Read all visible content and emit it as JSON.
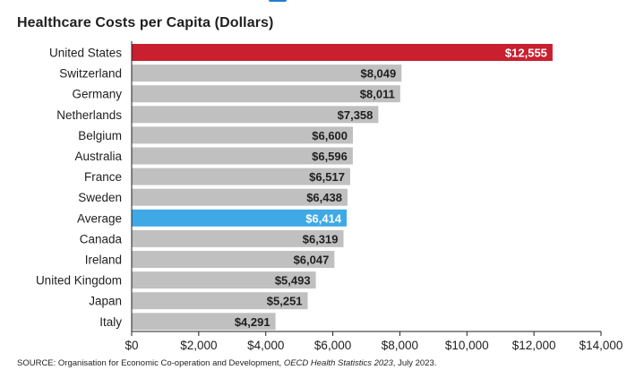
{
  "chart_data": {
    "type": "bar",
    "orientation": "horizontal",
    "title": "Healthcare Costs per Capita (Dollars)",
    "categories": [
      "United States",
      "Switzerland",
      "Germany",
      "Netherlands",
      "Belgium",
      "Australia",
      "France",
      "Sweden",
      "Average",
      "Canada",
      "Ireland",
      "United Kingdom",
      "Japan",
      "Italy"
    ],
    "values": [
      12555,
      8049,
      8011,
      7358,
      6600,
      6596,
      6517,
      6438,
      6414,
      6319,
      6047,
      5493,
      5251,
      4291
    ],
    "value_labels": [
      "$12,555",
      "$8,049",
      "$8,011",
      "$7,358",
      "$6,600",
      "$6,596",
      "$6,517",
      "$6,438",
      "$6,414",
      "$6,319",
      "$6,047",
      "$5,493",
      "$5,251",
      "$4,291"
    ],
    "xlim": [
      0,
      14000
    ],
    "x_ticks": [
      0,
      2000,
      4000,
      6000,
      8000,
      10000,
      12000,
      14000
    ],
    "x_tick_labels": [
      "$0",
      "$2,000",
      "$4,000",
      "$6,000",
      "$8,000",
      "$10,000",
      "$12,000",
      "$14,000"
    ],
    "grid": false,
    "legend": "none",
    "colors": {
      "default_bar": "#c0c0c0",
      "highlight_united_states": "#c8202f",
      "highlight_average": "#3fa9e6",
      "default_label": "#1f1f1f",
      "highlight_label": "#ffffff",
      "axis": "#1f1f1f"
    }
  },
  "source": {
    "prefix": "SOURCE: Organisation for Economic Co-operation and Development, ",
    "publication": "OECD Health Statistics 2023",
    "suffix": ", July 2023."
  },
  "header_accent_color": "#1e7fd0"
}
